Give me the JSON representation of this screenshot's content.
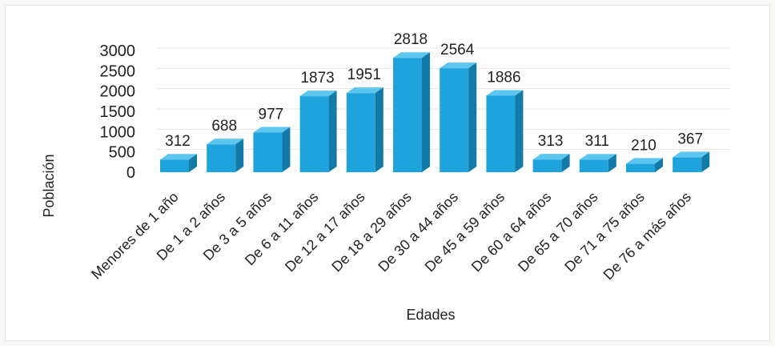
{
  "chart_data": {
    "type": "bar",
    "title": "",
    "xlabel": "Edades",
    "ylabel": "Población",
    "ylim": [
      0,
      3000
    ],
    "yticks": [
      0,
      500,
      1000,
      1500,
      2000,
      2500,
      3000
    ],
    "grid": true,
    "legend": "none",
    "bar_style": "3d",
    "categories": [
      "Menores de 1 año",
      "De 1 a 2 años",
      "De 3 a 5 años",
      "De 6 a 11 años",
      "De 12 a 17 años",
      "De 18 a 29 años",
      "De 30 a 44 años",
      "De 45 a 59 años",
      "De 60 a 64 años",
      "De 65 a 70 años",
      "De 71 a 75 años",
      "De 76 a más años"
    ],
    "values": [
      312,
      688,
      977,
      1873,
      1951,
      2818,
      2564,
      1886,
      313,
      311,
      210,
      367
    ]
  },
  "colors": {
    "bar_front": "#1fa3dc",
    "bar_top": "#5cc6ef",
    "bar_side": "#137aa8",
    "grid": "#e6e6e6"
  }
}
